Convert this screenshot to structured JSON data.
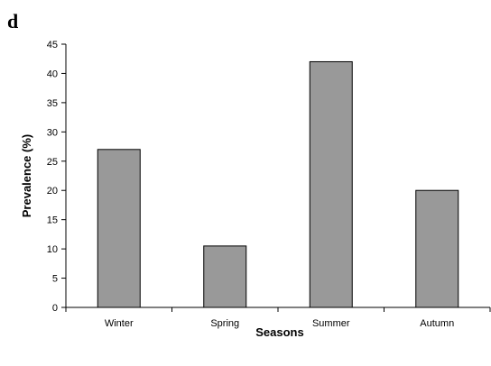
{
  "panel_label": "d",
  "chart_data": {
    "type": "bar",
    "categories": [
      "Winter",
      "Spring",
      "Summer",
      "Autumn"
    ],
    "values": [
      27,
      10.5,
      42,
      20
    ],
    "title": "",
    "xlabel": "Seasons",
    "ylabel": "Prevalence (%)",
    "ylim": [
      0,
      45
    ],
    "yticks": [
      0,
      5,
      10,
      15,
      20,
      25,
      30,
      35,
      40,
      45
    ],
    "grid": false,
    "legend": "none",
    "bar_color": "#999999",
    "bar_edge_color": "#000000"
  }
}
